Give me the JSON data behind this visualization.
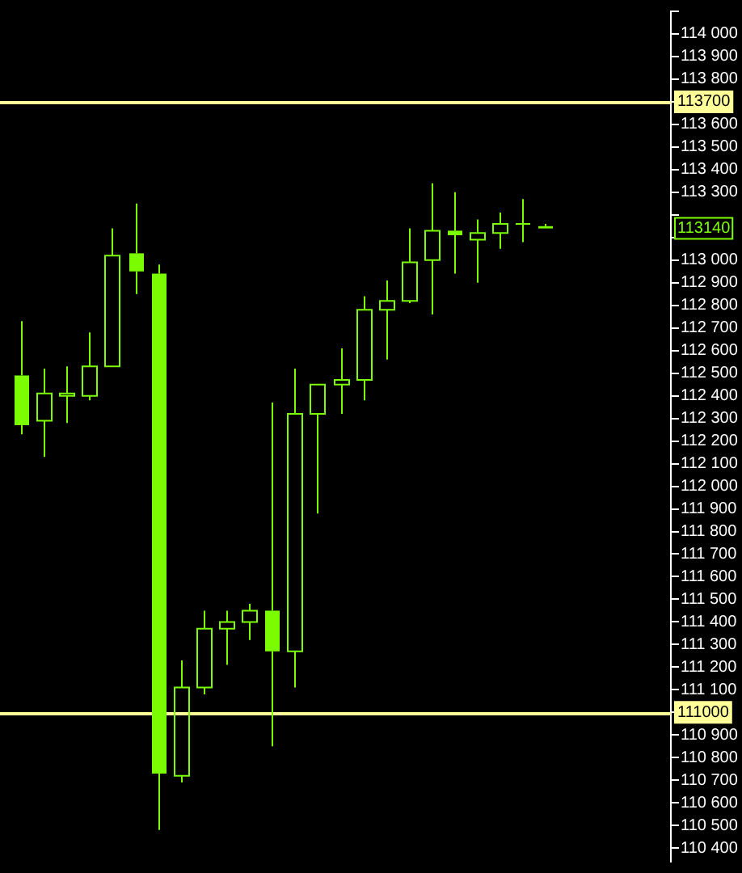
{
  "chart_data": {
    "type": "candlestick",
    "color": "#7cfc00",
    "categories": [
      null,
      null,
      null,
      null,
      null,
      null,
      null,
      null,
      null,
      null,
      null,
      null,
      null,
      null,
      null,
      null,
      null,
      null,
      null,
      null,
      null,
      null,
      null,
      null,
      null,
      null,
      null,
      null,
      null
    ],
    "ohlc": [
      [
        112490,
        112730,
        112230,
        112270
      ],
      [
        112290,
        112520,
        112130,
        112410
      ],
      [
        112400,
        112530,
        112280,
        112410
      ],
      [
        112400,
        112680,
        112380,
        112530
      ],
      [
        112530,
        113140,
        112530,
        113020
      ],
      [
        113030,
        113250,
        112850,
        112950
      ],
      [
        112940,
        112980,
        110480,
        110730
      ],
      [
        110720,
        111230,
        110690,
        111110
      ],
      [
        111110,
        111450,
        111080,
        111370
      ],
      [
        111370,
        111450,
        111210,
        111400
      ],
      [
        111400,
        111480,
        111320,
        111450
      ],
      [
        111450,
        112370,
        110850,
        111270
      ],
      [
        111270,
        112520,
        111110,
        112320
      ],
      [
        112320,
        112450,
        111880,
        112450
      ],
      [
        112450,
        112610,
        112320,
        112470
      ],
      [
        112470,
        112840,
        112380,
        112780
      ],
      [
        112780,
        112910,
        112560,
        112820
      ],
      [
        112820,
        113140,
        112810,
        112990
      ],
      [
        113000,
        113340,
        112760,
        113130
      ],
      [
        113130,
        113300,
        112940,
        113110
      ],
      [
        113090,
        113180,
        112900,
        113120
      ],
      [
        113120,
        113210,
        113050,
        113160
      ],
      [
        113160,
        113270,
        113080,
        113160
      ],
      [
        113150,
        113160,
        113140,
        113140
      ],
      null,
      null,
      null,
      null,
      null
    ],
    "ylim": [
      110340,
      114100
    ],
    "yticks": [
      {
        "value": 110400,
        "label": "110 400"
      },
      {
        "value": 110500,
        "label": "110 500"
      },
      {
        "value": 110600,
        "label": "110 600"
      },
      {
        "value": 110700,
        "label": "110 700"
      },
      {
        "value": 110800,
        "label": "110 800"
      },
      {
        "value": 110900,
        "label": "110 900"
      },
      {
        "value": 111000,
        "label": null
      },
      {
        "value": 111100,
        "label": "111 100"
      },
      {
        "value": 111200,
        "label": "111 200"
      },
      {
        "value": 111300,
        "label": "111 300"
      },
      {
        "value": 111400,
        "label": "111 400"
      },
      {
        "value": 111500,
        "label": "111 500"
      },
      {
        "value": 111600,
        "label": "111 600"
      },
      {
        "value": 111700,
        "label": "111 700"
      },
      {
        "value": 111800,
        "label": "111 800"
      },
      {
        "value": 111900,
        "label": "111 900"
      },
      {
        "value": 112000,
        "label": "112 000"
      },
      {
        "value": 112100,
        "label": "112 100"
      },
      {
        "value": 112200,
        "label": "112 200"
      },
      {
        "value": 112300,
        "label": "112 300"
      },
      {
        "value": 112400,
        "label": "112 400"
      },
      {
        "value": 112500,
        "label": "112 500"
      },
      {
        "value": 112600,
        "label": "112 600"
      },
      {
        "value": 112700,
        "label": "112 700"
      },
      {
        "value": 112800,
        "label": "112 800"
      },
      {
        "value": 112900,
        "label": "112 900"
      },
      {
        "value": 113000,
        "label": "113 000"
      },
      {
        "value": 113100,
        "label": null
      },
      {
        "value": 113200,
        "label": null
      },
      {
        "value": 113300,
        "label": "113 300"
      },
      {
        "value": 113400,
        "label": "113 400"
      },
      {
        "value": 113500,
        "label": "113 500"
      },
      {
        "value": 113600,
        "label": "113 600"
      },
      {
        "value": 113700,
        "label": null
      },
      {
        "value": 113800,
        "label": "113 800"
      },
      {
        "value": 113900,
        "label": "113 900"
      },
      {
        "value": 114000,
        "label": "114 000"
      },
      {
        "value": 114100,
        "label": null
      }
    ],
    "ref_lines": [
      {
        "axis": "y",
        "value": 113700,
        "label": "113700",
        "color": "#ffff99"
      },
      {
        "axis": "y",
        "value": 111000,
        "label": "111000",
        "color": "#ffff99"
      }
    ],
    "annotations": [
      {
        "text": "113140",
        "y": 113140
      }
    ],
    "tick_labels": "y",
    "legend": false,
    "grid": false
  }
}
